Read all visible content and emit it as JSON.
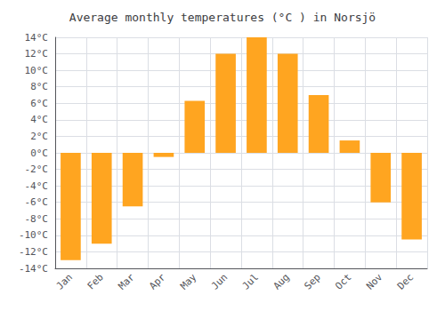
{
  "chart_data": {
    "type": "bar",
    "title": "Average monthly temperatures (°C ) in Norsjö",
    "categories": [
      "Jan",
      "Feb",
      "Mar",
      "Apr",
      "May",
      "Jun",
      "Jul",
      "Aug",
      "Sep",
      "Oct",
      "Nov",
      "Dec"
    ],
    "values": [
      -13,
      -11,
      -6.5,
      -0.5,
      6.3,
      12,
      14,
      12,
      7,
      1.5,
      -6,
      -10.5
    ],
    "color": "#FFA520",
    "ylim": [
      -14,
      14
    ],
    "yticks": [
      {
        "value": -14,
        "label": "-14°C"
      },
      {
        "value": -12,
        "label": "-12°C"
      },
      {
        "value": -10,
        "label": "-10°C"
      },
      {
        "value": -8,
        "label": "-8°C"
      },
      {
        "value": -6,
        "label": "-6°C"
      },
      {
        "value": -4,
        "label": "-4°C"
      },
      {
        "value": -2,
        "label": "-2°C"
      },
      {
        "value": 0,
        "label": "0°C"
      },
      {
        "value": 2,
        "label": "2°C"
      },
      {
        "value": 4,
        "label": "4°C"
      },
      {
        "value": 6,
        "label": "6°C"
      },
      {
        "value": 8,
        "label": "8°C"
      },
      {
        "value": 10,
        "label": "10°C"
      },
      {
        "value": 12,
        "label": "12°C"
      },
      {
        "value": 14,
        "label": "14°C"
      }
    ],
    "grid": true
  }
}
